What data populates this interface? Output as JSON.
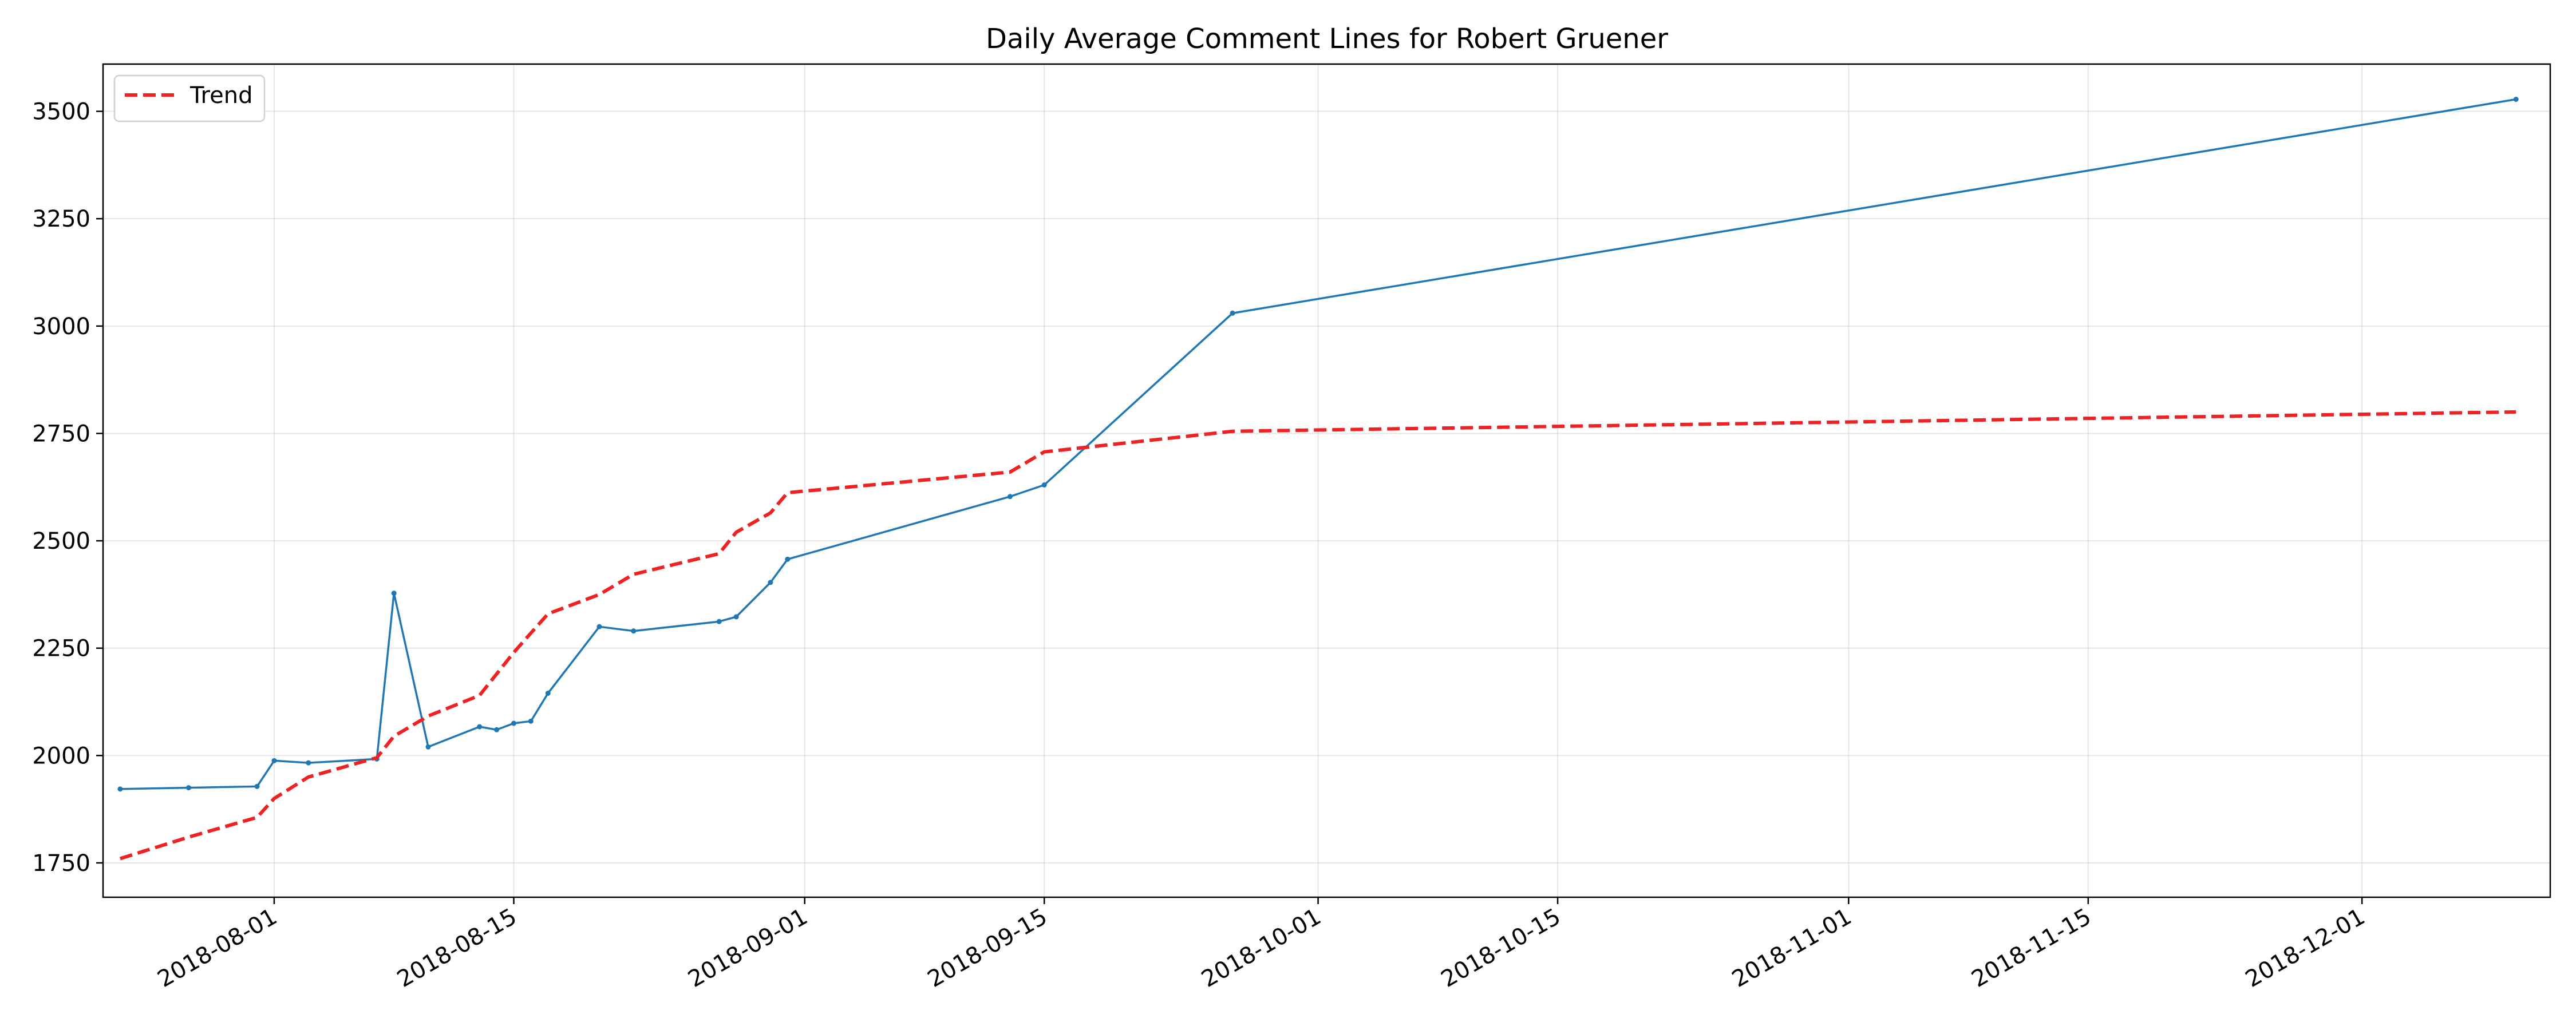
{
  "chart_data": {
    "type": "line",
    "title": "Daily Average Comment Lines for Robert Gruener",
    "xlabel": "",
    "ylabel": "",
    "x_axis_type": "date",
    "xlim": [
      "2018-07-22",
      "2018-12-12"
    ],
    "ylim": [
      1670,
      3610
    ],
    "grid": true,
    "legend_position": "upper-left",
    "x_ticks": [
      "2018-08-01",
      "2018-08-15",
      "2018-09-01",
      "2018-09-15",
      "2018-10-01",
      "2018-10-15",
      "2018-11-01",
      "2018-11-15",
      "2018-12-01"
    ],
    "y_ticks": [
      1750,
      2000,
      2250,
      2500,
      2750,
      3000,
      3250,
      3500
    ],
    "series": [
      {
        "name": "",
        "color": "#1f77b4",
        "style": "solid",
        "markers": true,
        "x": [
          "2018-07-23",
          "2018-07-27",
          "2018-07-31",
          "2018-08-01",
          "2018-08-03",
          "2018-08-07",
          "2018-08-08",
          "2018-08-10",
          "2018-08-13",
          "2018-08-14",
          "2018-08-15",
          "2018-08-16",
          "2018-08-17",
          "2018-08-20",
          "2018-08-22",
          "2018-08-27",
          "2018-08-28",
          "2018-08-30",
          "2018-08-31",
          "2018-09-13",
          "2018-09-15",
          "2018-09-26",
          "2018-12-10"
        ],
        "y": [
          1922,
          1925,
          1928,
          1988,
          1983,
          1992,
          2378,
          2020,
          2067,
          2060,
          2075,
          2080,
          2145,
          2300,
          2290,
          2312,
          2323,
          2403,
          2457,
          2603,
          2630,
          3030,
          3528
        ]
      },
      {
        "name": "Trend",
        "color": "#ee2222",
        "style": "dashed",
        "markers": false,
        "x": [
          "2018-07-23",
          "2018-07-27",
          "2018-07-31",
          "2018-08-01",
          "2018-08-03",
          "2018-08-07",
          "2018-08-08",
          "2018-08-10",
          "2018-08-13",
          "2018-08-14",
          "2018-08-15",
          "2018-08-16",
          "2018-08-17",
          "2018-08-20",
          "2018-08-22",
          "2018-08-27",
          "2018-08-28",
          "2018-08-30",
          "2018-08-31",
          "2018-09-13",
          "2018-09-15",
          "2018-09-26",
          "2018-12-10"
        ],
        "y": [
          1760,
          1810,
          1856,
          1900,
          1950,
          1995,
          2045,
          2092,
          2140,
          2190,
          2240,
          2285,
          2330,
          2375,
          2422,
          2470,
          2520,
          2565,
          2612,
          2660,
          2707,
          2755,
          2800
        ]
      }
    ]
  }
}
